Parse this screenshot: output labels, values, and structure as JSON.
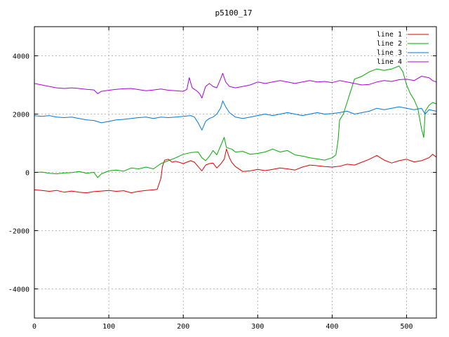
{
  "chart_data": {
    "type": "line",
    "title": "p5100_17",
    "xlabel": "",
    "ylabel": "",
    "xlim": [
      0,
      540
    ],
    "ylim": [
      -5000,
      5000
    ],
    "xticks": [
      0,
      100,
      200,
      300,
      400,
      500
    ],
    "yticks": [
      -4000,
      -2000,
      0,
      2000,
      4000
    ],
    "grid": true,
    "legend_position": "top-right",
    "series": [
      {
        "name": "line 1",
        "color": "#dd0000",
        "points": [
          [
            0,
            -600
          ],
          [
            10,
            -620
          ],
          [
            20,
            -650
          ],
          [
            30,
            -620
          ],
          [
            40,
            -680
          ],
          [
            50,
            -640
          ],
          [
            60,
            -680
          ],
          [
            70,
            -700
          ],
          [
            80,
            -660
          ],
          [
            90,
            -640
          ],
          [
            100,
            -620
          ],
          [
            110,
            -650
          ],
          [
            120,
            -630
          ],
          [
            130,
            -700
          ],
          [
            140,
            -650
          ],
          [
            150,
            -620
          ],
          [
            160,
            -600
          ],
          [
            165,
            -580
          ],
          [
            170,
            -200
          ],
          [
            172,
            200
          ],
          [
            175,
            420
          ],
          [
            180,
            450
          ],
          [
            185,
            350
          ],
          [
            190,
            380
          ],
          [
            200,
            300
          ],
          [
            210,
            400
          ],
          [
            215,
            350
          ],
          [
            220,
            200
          ],
          [
            225,
            50
          ],
          [
            230,
            250
          ],
          [
            235,
            300
          ],
          [
            240,
            320
          ],
          [
            245,
            150
          ],
          [
            250,
            280
          ],
          [
            255,
            450
          ],
          [
            258,
            800
          ],
          [
            262,
            500
          ],
          [
            265,
            350
          ],
          [
            270,
            200
          ],
          [
            280,
            30
          ],
          [
            290,
            50
          ],
          [
            300,
            100
          ],
          [
            310,
            60
          ],
          [
            320,
            100
          ],
          [
            330,
            150
          ],
          [
            340,
            120
          ],
          [
            350,
            80
          ],
          [
            360,
            180
          ],
          [
            370,
            250
          ],
          [
            380,
            230
          ],
          [
            390,
            200
          ],
          [
            400,
            180
          ],
          [
            410,
            210
          ],
          [
            420,
            280
          ],
          [
            430,
            250
          ],
          [
            440,
            350
          ],
          [
            450,
            450
          ],
          [
            460,
            580
          ],
          [
            470,
            420
          ],
          [
            480,
            320
          ],
          [
            490,
            400
          ],
          [
            500,
            450
          ],
          [
            510,
            360
          ],
          [
            520,
            400
          ],
          [
            530,
            500
          ],
          [
            535,
            620
          ],
          [
            540,
            520
          ]
        ]
      },
      {
        "name": "line 2",
        "color": "#00aa00",
        "points": [
          [
            0,
            0
          ],
          [
            10,
            10
          ],
          [
            20,
            -30
          ],
          [
            30,
            -50
          ],
          [
            40,
            -20
          ],
          [
            50,
            -10
          ],
          [
            60,
            30
          ],
          [
            70,
            -30
          ],
          [
            80,
            0
          ],
          [
            85,
            -180
          ],
          [
            90,
            -50
          ],
          [
            100,
            50
          ],
          [
            110,
            80
          ],
          [
            120,
            40
          ],
          [
            130,
            150
          ],
          [
            140,
            120
          ],
          [
            150,
            180
          ],
          [
            160,
            120
          ],
          [
            170,
            300
          ],
          [
            180,
            400
          ],
          [
            190,
            500
          ],
          [
            200,
            620
          ],
          [
            210,
            680
          ],
          [
            220,
            700
          ],
          [
            225,
            500
          ],
          [
            230,
            400
          ],
          [
            235,
            550
          ],
          [
            240,
            750
          ],
          [
            245,
            600
          ],
          [
            250,
            900
          ],
          [
            255,
            1200
          ],
          [
            258,
            850
          ],
          [
            265,
            800
          ],
          [
            270,
            700
          ],
          [
            280,
            720
          ],
          [
            290,
            620
          ],
          [
            300,
            650
          ],
          [
            310,
            700
          ],
          [
            320,
            800
          ],
          [
            330,
            700
          ],
          [
            340,
            750
          ],
          [
            350,
            600
          ],
          [
            360,
            560
          ],
          [
            370,
            500
          ],
          [
            380,
            460
          ],
          [
            390,
            420
          ],
          [
            400,
            500
          ],
          [
            405,
            600
          ],
          [
            408,
            1100
          ],
          [
            410,
            1800
          ],
          [
            415,
            2000
          ],
          [
            420,
            2400
          ],
          [
            425,
            2800
          ],
          [
            430,
            3200
          ],
          [
            440,
            3300
          ],
          [
            450,
            3450
          ],
          [
            460,
            3550
          ],
          [
            470,
            3500
          ],
          [
            480,
            3550
          ],
          [
            490,
            3650
          ],
          [
            495,
            3450
          ],
          [
            500,
            3000
          ],
          [
            505,
            2700
          ],
          [
            510,
            2500
          ],
          [
            515,
            2200
          ],
          [
            520,
            1500
          ],
          [
            523,
            1200
          ],
          [
            525,
            2100
          ],
          [
            530,
            2300
          ],
          [
            535,
            2400
          ],
          [
            540,
            2350
          ]
        ]
      },
      {
        "name": "line 3",
        "color": "#0077dd",
        "points": [
          [
            0,
            1950
          ],
          [
            10,
            1920
          ],
          [
            20,
            1950
          ],
          [
            30,
            1900
          ],
          [
            40,
            1880
          ],
          [
            50,
            1900
          ],
          [
            60,
            1850
          ],
          [
            70,
            1800
          ],
          [
            80,
            1780
          ],
          [
            90,
            1700
          ],
          [
            100,
            1750
          ],
          [
            110,
            1800
          ],
          [
            120,
            1820
          ],
          [
            130,
            1850
          ],
          [
            140,
            1880
          ],
          [
            150,
            1900
          ],
          [
            160,
            1850
          ],
          [
            170,
            1900
          ],
          [
            180,
            1880
          ],
          [
            190,
            1900
          ],
          [
            200,
            1920
          ],
          [
            210,
            1950
          ],
          [
            215,
            1900
          ],
          [
            220,
            1700
          ],
          [
            225,
            1450
          ],
          [
            230,
            1750
          ],
          [
            235,
            1850
          ],
          [
            240,
            1900
          ],
          [
            245,
            2000
          ],
          [
            250,
            2200
          ],
          [
            253,
            2450
          ],
          [
            257,
            2250
          ],
          [
            262,
            2050
          ],
          [
            270,
            1900
          ],
          [
            280,
            1850
          ],
          [
            290,
            1900
          ],
          [
            300,
            1950
          ],
          [
            310,
            2000
          ],
          [
            320,
            1950
          ],
          [
            330,
            2000
          ],
          [
            340,
            2050
          ],
          [
            350,
            2000
          ],
          [
            360,
            1950
          ],
          [
            370,
            2000
          ],
          [
            380,
            2050
          ],
          [
            390,
            2000
          ],
          [
            400,
            2020
          ],
          [
            410,
            2050
          ],
          [
            420,
            2100
          ],
          [
            430,
            2000
          ],
          [
            440,
            2050
          ],
          [
            450,
            2100
          ],
          [
            460,
            2200
          ],
          [
            470,
            2150
          ],
          [
            480,
            2200
          ],
          [
            490,
            2250
          ],
          [
            500,
            2200
          ],
          [
            510,
            2150
          ],
          [
            520,
            2200
          ],
          [
            525,
            2000
          ],
          [
            530,
            2150
          ],
          [
            540,
            2100
          ]
        ]
      },
      {
        "name": "line 4",
        "color": "#aa00dd",
        "points": [
          [
            0,
            3050
          ],
          [
            10,
            3000
          ],
          [
            20,
            2950
          ],
          [
            30,
            2900
          ],
          [
            40,
            2880
          ],
          [
            50,
            2900
          ],
          [
            60,
            2880
          ],
          [
            70,
            2850
          ],
          [
            80,
            2830
          ],
          [
            85,
            2700
          ],
          [
            90,
            2780
          ],
          [
            100,
            2820
          ],
          [
            110,
            2850
          ],
          [
            120,
            2870
          ],
          [
            130,
            2880
          ],
          [
            140,
            2840
          ],
          [
            150,
            2800
          ],
          [
            160,
            2830
          ],
          [
            170,
            2860
          ],
          [
            180,
            2820
          ],
          [
            190,
            2800
          ],
          [
            200,
            2780
          ],
          [
            205,
            2850
          ],
          [
            208,
            3250
          ],
          [
            212,
            2900
          ],
          [
            218,
            2800
          ],
          [
            222,
            2700
          ],
          [
            225,
            2550
          ],
          [
            230,
            2950
          ],
          [
            235,
            3050
          ],
          [
            240,
            2950
          ],
          [
            245,
            2900
          ],
          [
            250,
            3200
          ],
          [
            253,
            3400
          ],
          [
            257,
            3100
          ],
          [
            262,
            2950
          ],
          [
            270,
            2900
          ],
          [
            280,
            2950
          ],
          [
            290,
            3000
          ],
          [
            300,
            3100
          ],
          [
            310,
            3050
          ],
          [
            320,
            3100
          ],
          [
            330,
            3150
          ],
          [
            340,
            3100
          ],
          [
            350,
            3050
          ],
          [
            360,
            3100
          ],
          [
            370,
            3150
          ],
          [
            380,
            3100
          ],
          [
            390,
            3120
          ],
          [
            400,
            3080
          ],
          [
            410,
            3150
          ],
          [
            420,
            3100
          ],
          [
            430,
            3050
          ],
          [
            440,
            3000
          ],
          [
            450,
            3020
          ],
          [
            460,
            3100
          ],
          [
            470,
            3150
          ],
          [
            480,
            3120
          ],
          [
            490,
            3180
          ],
          [
            500,
            3200
          ],
          [
            510,
            3150
          ],
          [
            520,
            3300
          ],
          [
            530,
            3250
          ],
          [
            535,
            3150
          ],
          [
            540,
            3100
          ]
        ]
      }
    ]
  }
}
